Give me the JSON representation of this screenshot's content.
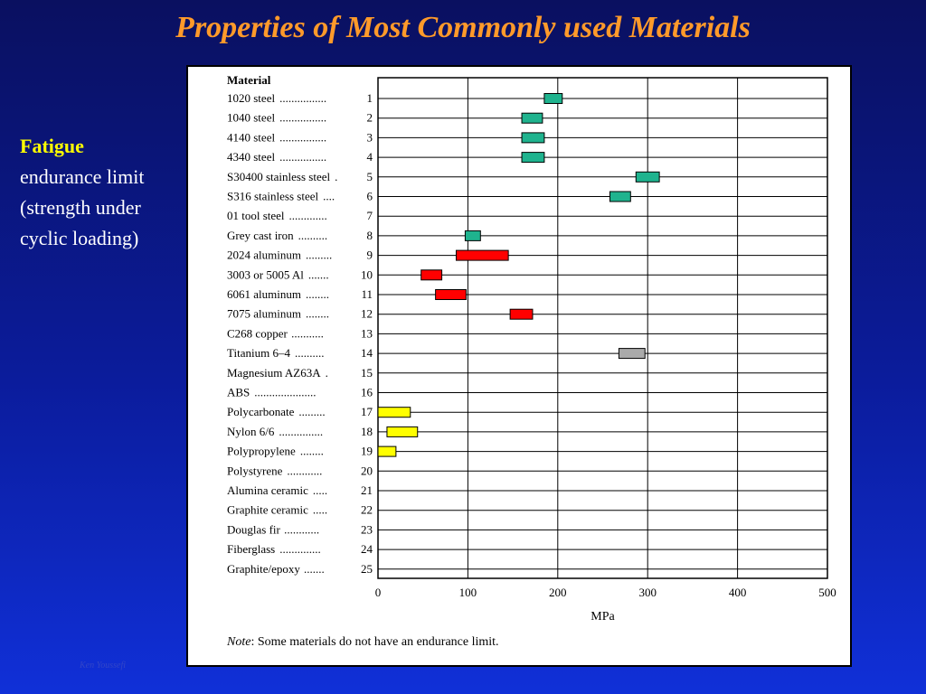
{
  "slide": {
    "title": "Properties of Most Commonly used Materials",
    "side_heading": "Fatigue",
    "side_lines": [
      "endurance limit",
      "(strength under",
      "cyclic loading)"
    ],
    "footer_author": "Ken Youssefi"
  },
  "chart_data": {
    "type": "range-bar",
    "column_header": "Material",
    "materials": [
      {
        "index": 1,
        "name": "1020 steel",
        "dots": "................",
        "range": [
          185,
          205
        ],
        "color": "#1fb38e"
      },
      {
        "index": 2,
        "name": "1040 steel",
        "dots": "................",
        "range": [
          160,
          183
        ],
        "color": "#1fb38e"
      },
      {
        "index": 3,
        "name": "4140 steel",
        "dots": "................",
        "range": [
          160,
          185
        ],
        "color": "#1fb38e"
      },
      {
        "index": 4,
        "name": "4340 steel",
        "dots": "................",
        "range": [
          160,
          185
        ],
        "color": "#1fb38e"
      },
      {
        "index": 5,
        "name": "S30400 stainless steel",
        "dots": ".",
        "range": [
          287,
          313
        ],
        "color": "#1fb38e"
      },
      {
        "index": 6,
        "name": "S316 stainless steel",
        "dots": "....",
        "range": [
          258,
          281
        ],
        "color": "#1fb38e"
      },
      {
        "index": 7,
        "name": "01 tool steel",
        "dots": ".............",
        "range": null,
        "color": null
      },
      {
        "index": 8,
        "name": "Grey cast iron",
        "dots": "..........",
        "range": [
          97,
          114
        ],
        "color": "#1fb38e"
      },
      {
        "index": 9,
        "name": "2024 aluminum",
        "dots": ".........",
        "range": [
          87,
          145
        ],
        "color": "#ff0000"
      },
      {
        "index": 10,
        "name": "3003 or 5005 Al",
        "dots": ".......",
        "range": [
          48,
          71
        ],
        "color": "#ff0000"
      },
      {
        "index": 11,
        "name": "6061 aluminum",
        "dots": "........",
        "range": [
          64,
          98
        ],
        "color": "#ff0000"
      },
      {
        "index": 12,
        "name": "7075 aluminum",
        "dots": "........",
        "range": [
          147,
          172
        ],
        "color": "#ff0000"
      },
      {
        "index": 13,
        "name": "C268 copper",
        "dots": "...........",
        "range": null,
        "color": null
      },
      {
        "index": 14,
        "name": "Titanium 6–4",
        "dots": "..........",
        "range": [
          268,
          297
        ],
        "color": "#aaaaaa"
      },
      {
        "index": 15,
        "name": "Magnesium AZ63A",
        "dots": ".",
        "range": null,
        "color": null
      },
      {
        "index": 16,
        "name": "ABS",
        "dots": ".....................",
        "range": null,
        "color": null
      },
      {
        "index": 17,
        "name": "Polycarbonate",
        "dots": ".........",
        "range": [
          0,
          36
        ],
        "color": "#ffff00"
      },
      {
        "index": 18,
        "name": "Nylon 6/6",
        "dots": "...............",
        "range": [
          10,
          44
        ],
        "color": "#ffff00"
      },
      {
        "index": 19,
        "name": "Polypropylene",
        "dots": "........",
        "range": [
          0,
          20
        ],
        "color": "#ffff00"
      },
      {
        "index": 20,
        "name": "Polystyrene",
        "dots": "............",
        "range": null,
        "color": null
      },
      {
        "index": 21,
        "name": "Alumina ceramic",
        "dots": ".....",
        "range": null,
        "color": null
      },
      {
        "index": 22,
        "name": "Graphite ceramic",
        "dots": ".....",
        "range": null,
        "color": null
      },
      {
        "index": 23,
        "name": "Douglas fir",
        "dots": "............",
        "range": null,
        "color": null
      },
      {
        "index": 24,
        "name": "Fiberglass",
        "dots": "..............",
        "range": null,
        "color": null
      },
      {
        "index": 25,
        "name": "Graphite/epoxy",
        "dots": ".......",
        "range": null,
        "color": null
      }
    ],
    "xlabel": "MPa",
    "xlim": [
      0,
      500
    ],
    "xticks": [
      0,
      100,
      200,
      300,
      400,
      500
    ],
    "grid": true,
    "note_label": "Note",
    "note_text": ":  Some materials do not have an endurance limit."
  }
}
